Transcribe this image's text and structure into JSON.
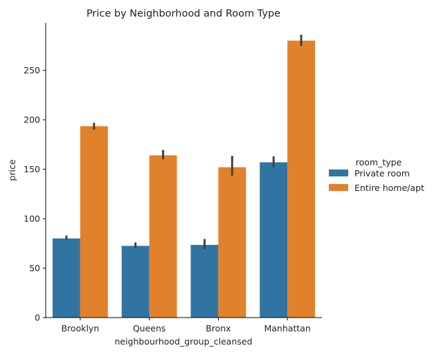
{
  "chart_data": {
    "type": "bar",
    "title": "Price by Neighborhood and Room Type",
    "xlabel": "neighbourhood_group_cleansed",
    "ylabel": "price",
    "categories": [
      "Brooklyn",
      "Queens",
      "Bronx",
      "Manhattan"
    ],
    "ylim": [
      0,
      298
    ],
    "yticks": [
      0,
      50,
      100,
      150,
      200,
      250
    ],
    "grid": false,
    "legend": {
      "title": "room_type",
      "placement": "right"
    },
    "series": [
      {
        "name": "Private room",
        "color": "#3274a1",
        "values": [
          80,
          72.5,
          73.5,
          157
        ],
        "error_low": [
          78,
          70.5,
          69,
          152
        ],
        "error_high": [
          83,
          76,
          79.5,
          163
        ]
      },
      {
        "name": "Entire home/apt",
        "color": "#e1812c",
        "values": [
          193.5,
          164,
          152,
          280
        ],
        "error_low": [
          190,
          160,
          143.5,
          274.5
        ],
        "error_high": [
          197,
          169.5,
          163.5,
          286
        ]
      }
    ]
  }
}
